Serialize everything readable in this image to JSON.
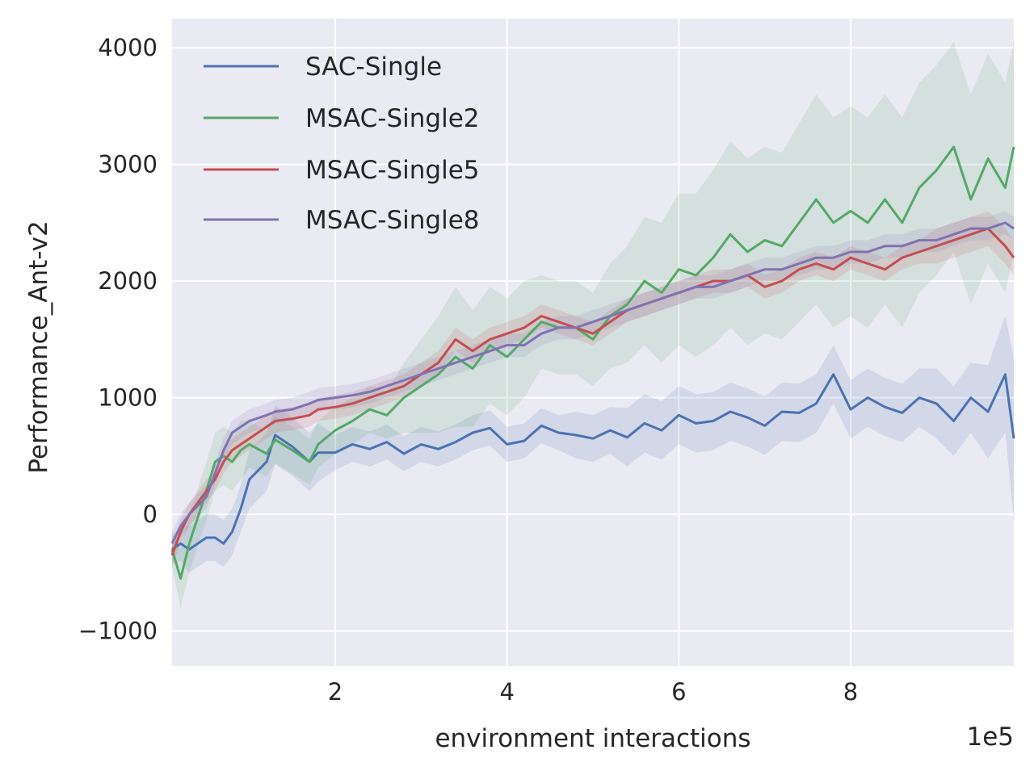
{
  "chart_data": {
    "type": "line",
    "xlabel": "environment interactions",
    "ylabel": "Performance_Ant-v2",
    "x_offset_label": "1e5",
    "xlim": [
      0.1,
      9.9
    ],
    "ylim": [
      -1300,
      4250
    ],
    "x_ticks": [
      2,
      4,
      6,
      8
    ],
    "x_tick_labels": [
      "2",
      "4",
      "6",
      "8"
    ],
    "y_ticks": [
      -1000,
      0,
      1000,
      2000,
      3000,
      4000
    ],
    "y_tick_labels": [
      "−1000",
      "0",
      "1000",
      "2000",
      "3000",
      "4000"
    ],
    "grid": true,
    "background": "#eaeaf2",
    "legend_position": "top-left",
    "series": [
      {
        "name": "SAC-Single",
        "color": "#4c72b0",
        "x": [
          0.1,
          0.2,
          0.3,
          0.5,
          0.6,
          0.7,
          0.8,
          0.9,
          1.0,
          1.2,
          1.3,
          1.5,
          1.7,
          1.8,
          2.0,
          2.2,
          2.4,
          2.6,
          2.8,
          3.0,
          3.2,
          3.4,
          3.6,
          3.8,
          4.0,
          4.2,
          4.4,
          4.6,
          4.8,
          5.0,
          5.2,
          5.4,
          5.6,
          5.8,
          6.0,
          6.2,
          6.4,
          6.6,
          6.8,
          7.0,
          7.2,
          7.4,
          7.6,
          7.8,
          8.0,
          8.2,
          8.4,
          8.6,
          8.8,
          9.0,
          9.2,
          9.4,
          9.6,
          9.8,
          9.9
        ],
        "y": [
          -300,
          -250,
          -300,
          -200,
          -200,
          -250,
          -150,
          50,
          300,
          450,
          680,
          580,
          450,
          530,
          530,
          600,
          560,
          620,
          520,
          600,
          560,
          620,
          700,
          740,
          600,
          630,
          760,
          700,
          680,
          650,
          720,
          660,
          780,
          720,
          850,
          780,
          800,
          880,
          830,
          760,
          880,
          870,
          950,
          1200,
          900,
          1000,
          920,
          870,
          1000,
          950,
          800,
          1000,
          880,
          1200,
          650
        ],
        "band": [
          120,
          150,
          200,
          200,
          200,
          200,
          200,
          200,
          250,
          250,
          250,
          250,
          250,
          250,
          150,
          150,
          150,
          150,
          150,
          150,
          150,
          150,
          150,
          150,
          150,
          150,
          150,
          150,
          200,
          200,
          200,
          250,
          250,
          250,
          250,
          250,
          250,
          250,
          250,
          250,
          250,
          250,
          250,
          250,
          250,
          250,
          250,
          250,
          250,
          300,
          300,
          300,
          400,
          500,
          700
        ]
      },
      {
        "name": "MSAC-Single2",
        "color": "#55a868",
        "x": [
          0.1,
          0.2,
          0.3,
          0.5,
          0.6,
          0.7,
          0.8,
          0.9,
          1.0,
          1.2,
          1.3,
          1.5,
          1.7,
          1.8,
          2.0,
          2.2,
          2.4,
          2.6,
          2.8,
          3.0,
          3.2,
          3.4,
          3.6,
          3.8,
          4.0,
          4.2,
          4.4,
          4.6,
          4.8,
          5.0,
          5.2,
          5.4,
          5.6,
          5.8,
          6.0,
          6.2,
          6.4,
          6.6,
          6.8,
          7.0,
          7.2,
          7.4,
          7.6,
          7.8,
          8.0,
          8.2,
          8.4,
          8.6,
          8.8,
          9.0,
          9.2,
          9.4,
          9.6,
          9.8,
          9.9
        ],
        "y": [
          -300,
          -550,
          -250,
          200,
          450,
          500,
          450,
          550,
          600,
          520,
          640,
          550,
          450,
          600,
          720,
          800,
          900,
          850,
          1000,
          1100,
          1200,
          1350,
          1250,
          1450,
          1350,
          1500,
          1650,
          1600,
          1600,
          1500,
          1700,
          1800,
          2000,
          1900,
          2100,
          2050,
          2200,
          2400,
          2250,
          2350,
          2300,
          2500,
          2700,
          2500,
          2600,
          2500,
          2700,
          2500,
          2800,
          2950,
          3150,
          2700,
          3050,
          2800,
          3150
        ],
        "band": [
          150,
          250,
          250,
          250,
          250,
          250,
          250,
          250,
          200,
          200,
          200,
          200,
          200,
          200,
          200,
          200,
          200,
          200,
          300,
          400,
          500,
          600,
          500,
          500,
          500,
          500,
          400,
          400,
          400,
          400,
          450,
          500,
          550,
          600,
          650,
          700,
          750,
          800,
          800,
          800,
          800,
          850,
          900,
          900,
          900,
          900,
          900,
          900,
          900,
          900,
          900,
          900,
          900,
          900,
          900
        ]
      },
      {
        "name": "MSAC-Single5",
        "color": "#c44e52",
        "x": [
          0.1,
          0.2,
          0.3,
          0.5,
          0.6,
          0.7,
          0.8,
          0.9,
          1.0,
          1.2,
          1.3,
          1.5,
          1.7,
          1.8,
          2.0,
          2.2,
          2.4,
          2.6,
          2.8,
          3.0,
          3.2,
          3.4,
          3.6,
          3.8,
          4.0,
          4.2,
          4.4,
          4.6,
          4.8,
          5.0,
          5.2,
          5.4,
          5.6,
          5.8,
          6.0,
          6.2,
          6.4,
          6.6,
          6.8,
          7.0,
          7.2,
          7.4,
          7.6,
          7.8,
          8.0,
          8.2,
          8.4,
          8.6,
          8.8,
          9.0,
          9.2,
          9.4,
          9.6,
          9.8,
          9.9
        ],
        "y": [
          -350,
          -150,
          0,
          200,
          300,
          450,
          550,
          600,
          650,
          750,
          800,
          820,
          850,
          900,
          920,
          950,
          1000,
          1050,
          1100,
          1200,
          1300,
          1500,
          1400,
          1500,
          1550,
          1600,
          1700,
          1650,
          1600,
          1550,
          1650,
          1750,
          1800,
          1850,
          1900,
          1950,
          2000,
          2000,
          2050,
          1950,
          2000,
          2100,
          2150,
          2100,
          2200,
          2150,
          2100,
          2200,
          2250,
          2300,
          2350,
          2400,
          2450,
          2300,
          2200
        ],
        "band": [
          100,
          100,
          100,
          100,
          100,
          100,
          100,
          100,
          100,
          100,
          100,
          100,
          100,
          100,
          100,
          100,
          100,
          100,
          100,
          100,
          100,
          100,
          100,
          100,
          100,
          100,
          100,
          100,
          100,
          100,
          100,
          100,
          100,
          100,
          100,
          100,
          100,
          100,
          100,
          100,
          100,
          100,
          100,
          100,
          100,
          100,
          100,
          100,
          100,
          150,
          150,
          150,
          150,
          150,
          150
        ]
      },
      {
        "name": "MSAC-Single8",
        "color": "#8172b2",
        "x": [
          0.1,
          0.2,
          0.3,
          0.5,
          0.6,
          0.7,
          0.8,
          0.9,
          1.0,
          1.2,
          1.3,
          1.5,
          1.7,
          1.8,
          2.0,
          2.2,
          2.4,
          2.6,
          2.8,
          3.0,
          3.2,
          3.4,
          3.6,
          3.8,
          4.0,
          4.2,
          4.4,
          4.6,
          4.8,
          5.0,
          5.2,
          5.4,
          5.6,
          5.8,
          6.0,
          6.2,
          6.4,
          6.6,
          6.8,
          7.0,
          7.2,
          7.4,
          7.6,
          7.8,
          8.0,
          8.2,
          8.4,
          8.6,
          8.8,
          9.0,
          9.2,
          9.4,
          9.6,
          9.8,
          9.9
        ],
        "y": [
          -250,
          -100,
          0,
          150,
          350,
          550,
          700,
          750,
          800,
          850,
          880,
          900,
          950,
          980,
          1000,
          1020,
          1050,
          1100,
          1150,
          1200,
          1250,
          1300,
          1350,
          1400,
          1450,
          1450,
          1550,
          1600,
          1600,
          1650,
          1700,
          1750,
          1800,
          1850,
          1900,
          1950,
          1950,
          2000,
          2050,
          2100,
          2100,
          2150,
          2200,
          2200,
          2250,
          2250,
          2300,
          2300,
          2350,
          2350,
          2400,
          2450,
          2450,
          2500,
          2450
        ],
        "band": [
          100,
          100,
          100,
          100,
          100,
          100,
          100,
          100,
          100,
          100,
          100,
          100,
          100,
          100,
          100,
          100,
          100,
          100,
          100,
          100,
          100,
          100,
          100,
          100,
          100,
          100,
          100,
          100,
          100,
          100,
          100,
          100,
          100,
          100,
          100,
          100,
          100,
          100,
          100,
          100,
          100,
          100,
          100,
          100,
          100,
          100,
          100,
          100,
          100,
          100,
          100,
          100,
          100,
          100,
          100
        ]
      }
    ]
  }
}
